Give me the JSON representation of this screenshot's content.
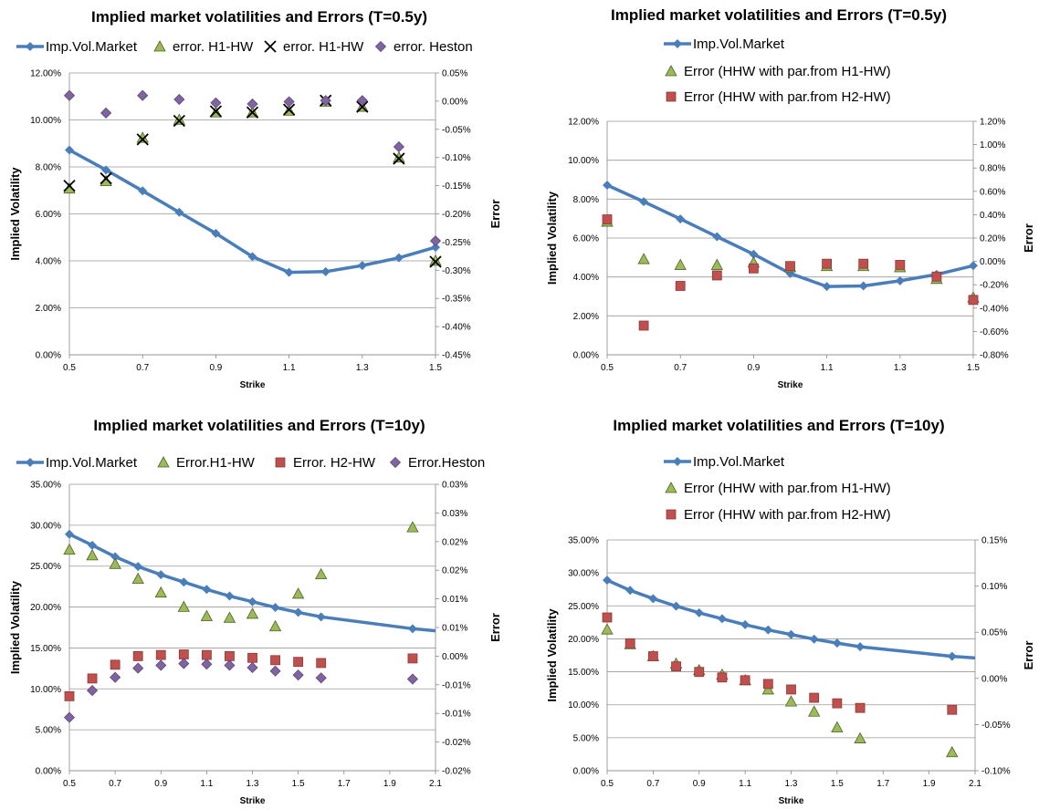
{
  "colors": {
    "market": "#4a7ebb",
    "green": "#9bbb59",
    "red": "#c0504d",
    "purple": "#8064a2",
    "grid": "#999999"
  },
  "chart_data": [
    {
      "type": "line",
      "title": "Implied market volatilities and Errors (T=0.5y)",
      "xlabel": "Strike",
      "ylabel": "Implied Volatility",
      "y2label": "Error",
      "x_ticks": [
        "0.5",
        "0.7",
        "0.9",
        "1.1",
        "1.3",
        "1.5"
      ],
      "xlim": [
        0.5,
        1.5
      ],
      "ylim": [
        0,
        0.12
      ],
      "y_ticks": [
        "0.00%",
        "2.00%",
        "4.00%",
        "6.00%",
        "8.00%",
        "10.00%",
        "12.00%"
      ],
      "y2lim": [
        -0.0045,
        0.0005
      ],
      "y2_ticks": [
        "-0.45%",
        "-0.40%",
        "-0.35%",
        "-0.30%",
        "-0.25%",
        "-0.20%",
        "-0.15%",
        "-0.10%",
        "-0.05%",
        "0.00%",
        "0.05%"
      ],
      "legend_layout": "row",
      "series": [
        {
          "name": "Imp.Vol.Market",
          "marker": "line",
          "color": "market",
          "axis": "left",
          "x": [
            0.5,
            0.6,
            0.7,
            0.8,
            0.9,
            1.0,
            1.1,
            1.2,
            1.3,
            1.4,
            1.5
          ],
          "values": [
            0.0872,
            0.0787,
            0.0698,
            0.0607,
            0.0517,
            0.0418,
            0.0351,
            0.0354,
            0.038,
            0.0413,
            0.0458
          ]
        },
        {
          "name": "error. H1-HW",
          "marker": "triangle",
          "color": "green",
          "axis": "right",
          "x": [
            0.5,
            0.6,
            0.7,
            0.8,
            0.9,
            1.0,
            1.1,
            1.2,
            1.3,
            1.4,
            1.5
          ],
          "values": [
            -0.00155,
            -0.00142,
            -0.00065,
            -0.00033,
            -0.0002,
            -0.0002,
            -0.00017,
            -1e-05,
            -0.0001,
            -0.001,
            -0.00283
          ]
        },
        {
          "name": "error. H1-HW",
          "marker": "cross",
          "color": "#000000",
          "axis": "right",
          "x": [
            0.5,
            0.6,
            0.7,
            0.8,
            0.9,
            1.0,
            1.1,
            1.2,
            1.3,
            1.4,
            1.5
          ],
          "values": [
            -0.0015,
            -0.00137,
            -0.00068,
            -0.00035,
            -0.00018,
            -0.0002,
            -0.00015,
            1e-05,
            -0.0001,
            -0.00102,
            -0.00285
          ]
        },
        {
          "name": "error. Heston",
          "marker": "diamond",
          "color": "purple",
          "axis": "right",
          "x": [
            0.5,
            0.6,
            0.7,
            0.8,
            0.9,
            1.0,
            1.1,
            1.2,
            1.3,
            1.4,
            1.5
          ],
          "values": [
            0.0001,
            -0.00021,
            0.0001,
            3e-05,
            -3e-05,
            -5e-05,
            -1e-05,
            1e-05,
            1e-05,
            -0.00081,
            -0.00248
          ]
        }
      ]
    },
    {
      "type": "line",
      "title": "Implied market volatilities and Errors (T=0.5y)",
      "xlabel": "Strike",
      "ylabel": "Implied Volatility",
      "y2label": "Error",
      "x_ticks": [
        "0.5",
        "0.7",
        "0.9",
        "1.1",
        "1.3",
        "1.5"
      ],
      "xlim": [
        0.5,
        1.5
      ],
      "ylim": [
        0,
        0.12
      ],
      "y_ticks": [
        "0.00%",
        "2.00%",
        "4.00%",
        "6.00%",
        "8.00%",
        "10.00%",
        "12.00%"
      ],
      "y2lim": [
        -0.008,
        0.012
      ],
      "y2_ticks": [
        "-0.80%",
        "-0.60%",
        "-0.40%",
        "-0.20%",
        "0.00%",
        "0.20%",
        "0.40%",
        "0.60%",
        "0.80%",
        "1.00%",
        "1.20%"
      ],
      "legend_layout": "column",
      "series": [
        {
          "name": "Imp.Vol.Market",
          "marker": "line",
          "color": "market",
          "axis": "left",
          "x": [
            0.5,
            0.6,
            0.7,
            0.8,
            0.9,
            1.0,
            1.1,
            1.2,
            1.3,
            1.4,
            1.5
          ],
          "values": [
            0.0872,
            0.0787,
            0.0698,
            0.0607,
            0.0517,
            0.0418,
            0.0351,
            0.0354,
            0.038,
            0.0413,
            0.0458
          ]
        },
        {
          "name": "Error (HHW with par.from H1-HW)",
          "marker": "triangle",
          "color": "green",
          "axis": "right",
          "x": [
            0.5,
            0.6,
            0.7,
            0.8,
            0.9,
            1.0,
            1.1,
            1.2,
            1.3,
            1.4,
            1.5
          ],
          "values": [
            0.0034,
            0.0002,
            -0.0003,
            -0.0003,
            -0.0001,
            -0.0005,
            -0.0004,
            -0.0004,
            -0.0005,
            -0.0015,
            -0.0031
          ]
        },
        {
          "name": "Error (HHW with par.from H2-HW)",
          "marker": "square",
          "color": "red",
          "axis": "right",
          "x": [
            0.5,
            0.6,
            0.7,
            0.8,
            0.9,
            1.0,
            1.1,
            1.2,
            1.3,
            1.4,
            1.5
          ],
          "values": [
            0.0036,
            -0.0055,
            -0.0021,
            -0.0012,
            -0.0006,
            -0.0004,
            -0.0002,
            -0.0002,
            -0.0003,
            -0.0013,
            -0.0033
          ]
        }
      ]
    },
    {
      "type": "line",
      "title": "Implied market volatilities and Errors (T=10y)",
      "xlabel": "Strike",
      "ylabel": "Implied Volatility",
      "y2label": "Error",
      "x_ticks": [
        "0.5",
        "0.7",
        "0.9",
        "1.1",
        "1.3",
        "1.5",
        "1.7",
        "1.9",
        "2.1"
      ],
      "xlim": [
        0.5,
        2.1
      ],
      "ylim": [
        0,
        0.35
      ],
      "y_ticks": [
        "0.00%",
        "5.00%",
        "10.00%",
        "15.00%",
        "20.00%",
        "25.00%",
        "30.00%",
        "35.00%"
      ],
      "y2lim": [
        -0.0002,
        0.0003
      ],
      "y2_ticks": [
        "-0.02%",
        "-0.02%",
        "-0.01%",
        "-0.01%",
        "0.00%",
        "0.01%",
        "0.01%",
        "0.02%",
        "0.02%",
        "0.03%",
        "0.03%"
      ],
      "legend_layout": "row",
      "series": [
        {
          "name": "Imp.Vol.Market",
          "marker": "line",
          "color": "market",
          "axis": "left",
          "x": [
            0.5,
            0.6,
            0.7,
            0.8,
            0.9,
            1.0,
            1.1,
            1.2,
            1.3,
            1.4,
            1.5,
            1.6,
            2.0,
            2.1
          ],
          "values": [
            0.289,
            0.2755,
            0.2615,
            0.2495,
            0.2395,
            0.2305,
            0.2215,
            0.2135,
            0.2065,
            0.1995,
            0.1935,
            0.188,
            0.1735,
            0.171
          ]
        },
        {
          "name": "Error.H1-HW",
          "marker": "triangle",
          "color": "green",
          "axis": "right",
          "x": [
            0.5,
            0.6,
            0.7,
            0.8,
            0.9,
            1.0,
            1.1,
            1.2,
            1.3,
            1.4,
            1.5,
            1.6,
            2.0
          ],
          "values": [
            0.000186,
            0.000176,
            0.000161,
            0.000135,
            0.000111,
            8.6e-05,
            7e-05,
            6.7e-05,
            7.4e-05,
            5.2e-05,
            0.000109,
            0.000143,
            0.000225
          ]
        },
        {
          "name": "Error. H2-HW",
          "marker": "square",
          "color": "red",
          "axis": "right",
          "x": [
            0.5,
            0.6,
            0.7,
            0.8,
            0.9,
            1.0,
            1.1,
            1.2,
            1.3,
            1.4,
            1.5,
            1.6,
            2.0
          ],
          "values": [
            -7e-05,
            -3.9e-05,
            -1.5e-05,
            0.0,
            2e-06,
            3e-06,
            2e-06,
            0.0,
            -3e-06,
            -7e-06,
            -1e-05,
            -1.2e-05,
            -4e-06
          ]
        },
        {
          "name": "Error.Heston",
          "marker": "diamond",
          "color": "purple",
          "axis": "right",
          "x": [
            0.5,
            0.6,
            0.7,
            0.8,
            0.9,
            1.0,
            1.1,
            1.2,
            1.3,
            1.4,
            1.5,
            1.6,
            2.0
          ],
          "values": [
            -0.000107,
            -6e-05,
            -3.7e-05,
            -2.1e-05,
            -1.6e-05,
            -1.3e-05,
            -1.4e-05,
            -1.6e-05,
            -2e-05,
            -2.6e-05,
            -3.3e-05,
            -3.8e-05,
            -4e-05
          ]
        }
      ]
    },
    {
      "type": "line",
      "title": "Implied market volatilities and Errors (T=10y)",
      "xlabel": "Strike",
      "ylabel": "Implied Volatility",
      "y2label": "Error",
      "x_ticks": [
        "0.5",
        "0.7",
        "0.9",
        "1.1",
        "1.3",
        "1.5",
        "1.7",
        "1.9",
        "2.1"
      ],
      "xlim": [
        0.5,
        2.1
      ],
      "ylim": [
        0,
        0.35
      ],
      "y_ticks": [
        "0.00%",
        "5.00%",
        "10.00%",
        "15.00%",
        "20.00%",
        "25.00%",
        "30.00%",
        "35.00%"
      ],
      "y2lim": [
        -0.001,
        0.0015
      ],
      "y2_ticks": [
        "-0.10%",
        "-0.05%",
        "0.00%",
        "0.05%",
        "0.10%",
        "0.15%"
      ],
      "legend_layout": "column",
      "series": [
        {
          "name": "Imp.Vol.Market",
          "marker": "line",
          "color": "market",
          "axis": "left",
          "x": [
            0.5,
            0.6,
            0.7,
            0.8,
            0.9,
            1.0,
            1.1,
            1.2,
            1.3,
            1.4,
            1.5,
            1.6,
            2.0,
            2.1
          ],
          "values": [
            0.289,
            0.2735,
            0.261,
            0.2495,
            0.2395,
            0.2305,
            0.2215,
            0.2135,
            0.2065,
            0.1995,
            0.1935,
            0.188,
            0.1735,
            0.171
          ]
        },
        {
          "name": "Error (HHW with par.from H1-HW)",
          "marker": "triangle",
          "color": "green",
          "axis": "right",
          "x": [
            0.5,
            0.6,
            0.7,
            0.8,
            0.9,
            1.0,
            1.1,
            1.2,
            1.3,
            1.4,
            1.5,
            1.6,
            2.0
          ],
          "values": [
            0.00053,
            0.00037,
            0.00024,
            0.00016,
            9e-05,
            4e-05,
            -2e-05,
            -0.00012,
            -0.00025,
            -0.00036,
            -0.00053,
            -0.00065,
            -0.0008
          ]
        },
        {
          "name": "Error (HHW with par.from H2-HW)",
          "marker": "square",
          "color": "red",
          "axis": "right",
          "x": [
            0.5,
            0.6,
            0.7,
            0.8,
            0.9,
            1.0,
            1.1,
            1.2,
            1.3,
            1.4,
            1.5,
            1.6,
            2.0
          ],
          "values": [
            0.00066,
            0.00038,
            0.00024,
            0.00013,
            7e-05,
            1e-05,
            -2e-05,
            -6e-05,
            -0.00012,
            -0.00021,
            -0.00027,
            -0.00032,
            -0.00034
          ]
        }
      ]
    }
  ]
}
